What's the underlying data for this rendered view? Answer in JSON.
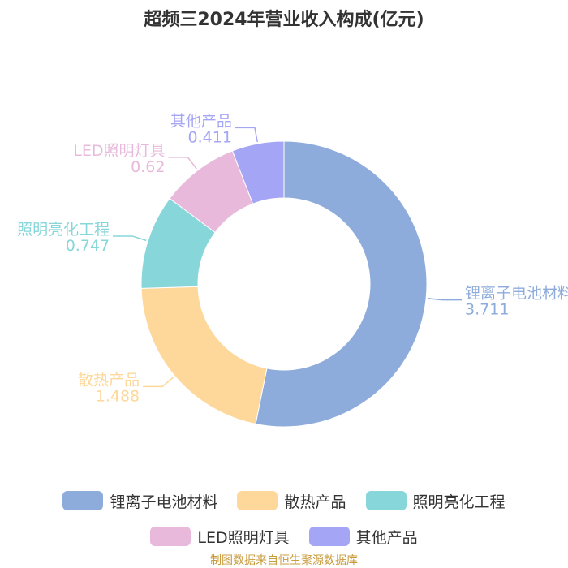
{
  "chart_data": {
    "type": "pie",
    "title": "超频三2024年营业收入构成(亿元)",
    "categories": [
      "锂离子电池材料",
      "散热产品",
      "照明亮化工程",
      "LED照明灯具",
      "其他产品"
    ],
    "values": [
      3.711,
      1.488,
      0.747,
      0.62,
      0.411
    ],
    "value_labels": [
      "3.711",
      "1.488",
      "0.747",
      "0.62",
      "0.411"
    ],
    "colors": [
      "#8eacdb",
      "#fdd89a",
      "#87d6d9",
      "#e8b9db",
      "#a5a5f5"
    ],
    "donut": true,
    "legend_position": "bottom"
  },
  "legend": {
    "items": [
      {
        "label": "锂离子电池材料",
        "color": "#8eacdb"
      },
      {
        "label": "散热产品",
        "color": "#fdd89a"
      },
      {
        "label": "照明亮化工程",
        "color": "#87d6d9"
      },
      {
        "label": "LED照明灯具",
        "color": "#e8b9db"
      },
      {
        "label": "其他产品",
        "color": "#a5a5f5"
      }
    ]
  },
  "source": "制图数据来自恒生聚源数据库"
}
